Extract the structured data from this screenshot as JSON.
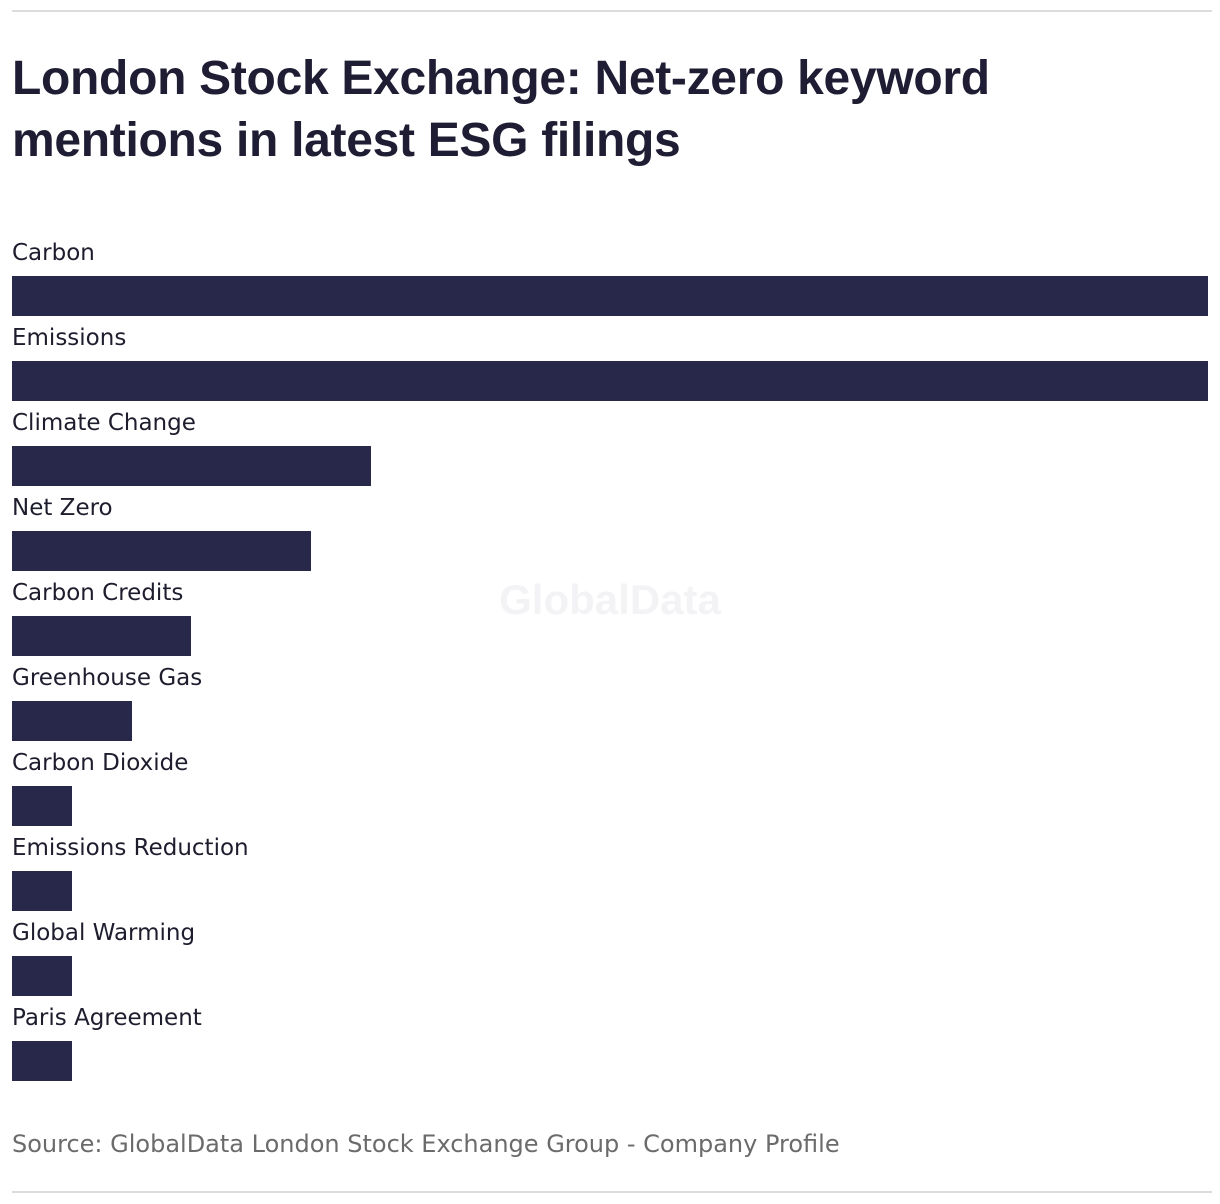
{
  "title": "London Stock Exchange: Net-zero keyword mentions in latest ESG filings",
  "watermark": "GlobalData",
  "source": "Source: GlobalData London Stock Exchange Group - Company Profile",
  "colors": {
    "bar": "#27284a",
    "text": "#1d1d2e",
    "source": "#6b6b6b",
    "rule": "#dcdcdc"
  },
  "chart_data": {
    "type": "bar",
    "orientation": "horizontal",
    "categories": [
      "Carbon",
      "Emissions",
      "Climate Change",
      "Net Zero",
      "Carbon Credits",
      "Greenhouse Gas",
      "Carbon Dioxide",
      "Emissions Reduction",
      "Global Warming",
      "Paris Agreement"
    ],
    "values": [
      20,
      20,
      6,
      5,
      3,
      2,
      1,
      1,
      1,
      1
    ],
    "title": "London Stock Exchange: Net-zero keyword mentions in latest ESG filings",
    "xlabel": "",
    "ylabel": "",
    "xlim": [
      0,
      20
    ],
    "grid": false,
    "legend": "none"
  }
}
